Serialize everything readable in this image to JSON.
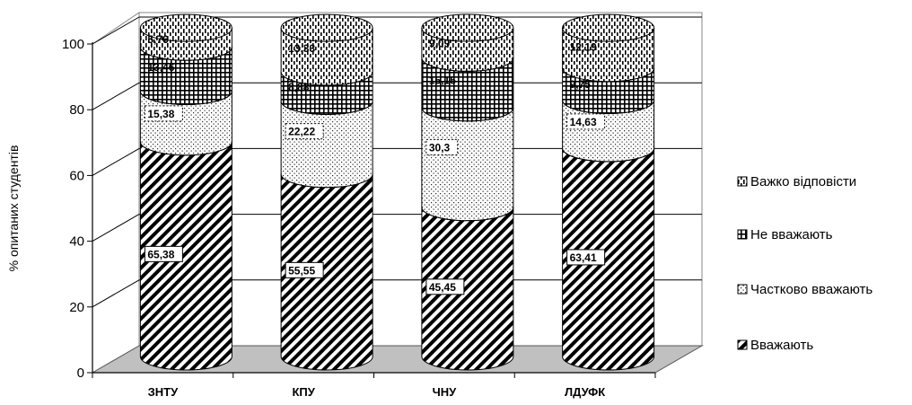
{
  "chart_data": {
    "type": "bar",
    "subtype": "stacked-3d-cylinder",
    "title": "",
    "xlabel": "",
    "ylabel": "% опитаних студентів",
    "ylim": [
      0,
      100
    ],
    "yticks": [
      "0",
      "20",
      "40",
      "60",
      "80",
      "100"
    ],
    "categories": [
      "ЗНТУ",
      "КПУ",
      "ЧНУ",
      "ЛДУФК"
    ],
    "series": [
      {
        "name": "Вважають",
        "pattern": "diagonal-stripes",
        "values": [
          65.38,
          55.55,
          45.45,
          63.41
        ],
        "labels": [
          "65,38",
          "55,55",
          "45,45",
          "63,41"
        ]
      },
      {
        "name": "Частково вважають",
        "pattern": "dots",
        "values": [
          15.38,
          22.22,
          30.3,
          14.63
        ],
        "labels": [
          "15,38",
          "22,22",
          "30,3",
          "14,63"
        ]
      },
      {
        "name": "Не вважають",
        "pattern": "grid",
        "values": [
          13.46,
          8.88,
          15.15,
          9.75
        ],
        "labels": [
          "13,46",
          "8,88",
          "15,15",
          "9,75"
        ]
      },
      {
        "name": "Важко відповісти",
        "pattern": "vertical-dashes",
        "values": [
          5.76,
          13.33,
          9.09,
          12.19
        ],
        "labels": [
          "5,76",
          "13,33",
          "9,09",
          "12,19"
        ]
      }
    ],
    "legend_position": "right",
    "legend_order": [
      "Важко відповісти",
      "Не вважають",
      "Частково вважають",
      "Вважають"
    ],
    "grid": true,
    "floor_color": "#c0c0c0"
  }
}
